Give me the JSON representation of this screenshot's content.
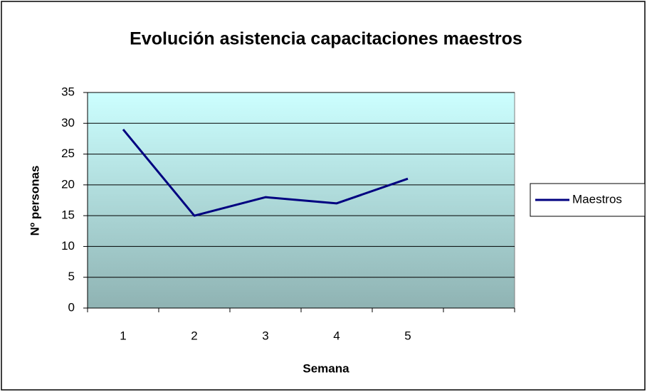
{
  "chart_data": {
    "type": "line",
    "title": "Evolución asistencia capacitaciones maestros",
    "x_label": "Semana",
    "y_label": "Nº personas",
    "categories": [
      "1",
      "2",
      "3",
      "4",
      "5",
      null
    ],
    "series": [
      {
        "name": "Maestros",
        "color": "#000080",
        "values": [
          29,
          15,
          18,
          17,
          21,
          null
        ]
      }
    ],
    "ylim": [
      0,
      35
    ],
    "yticks": [
      0,
      5,
      10,
      15,
      20,
      25,
      30,
      35
    ],
    "grid": true,
    "legend": "right"
  }
}
